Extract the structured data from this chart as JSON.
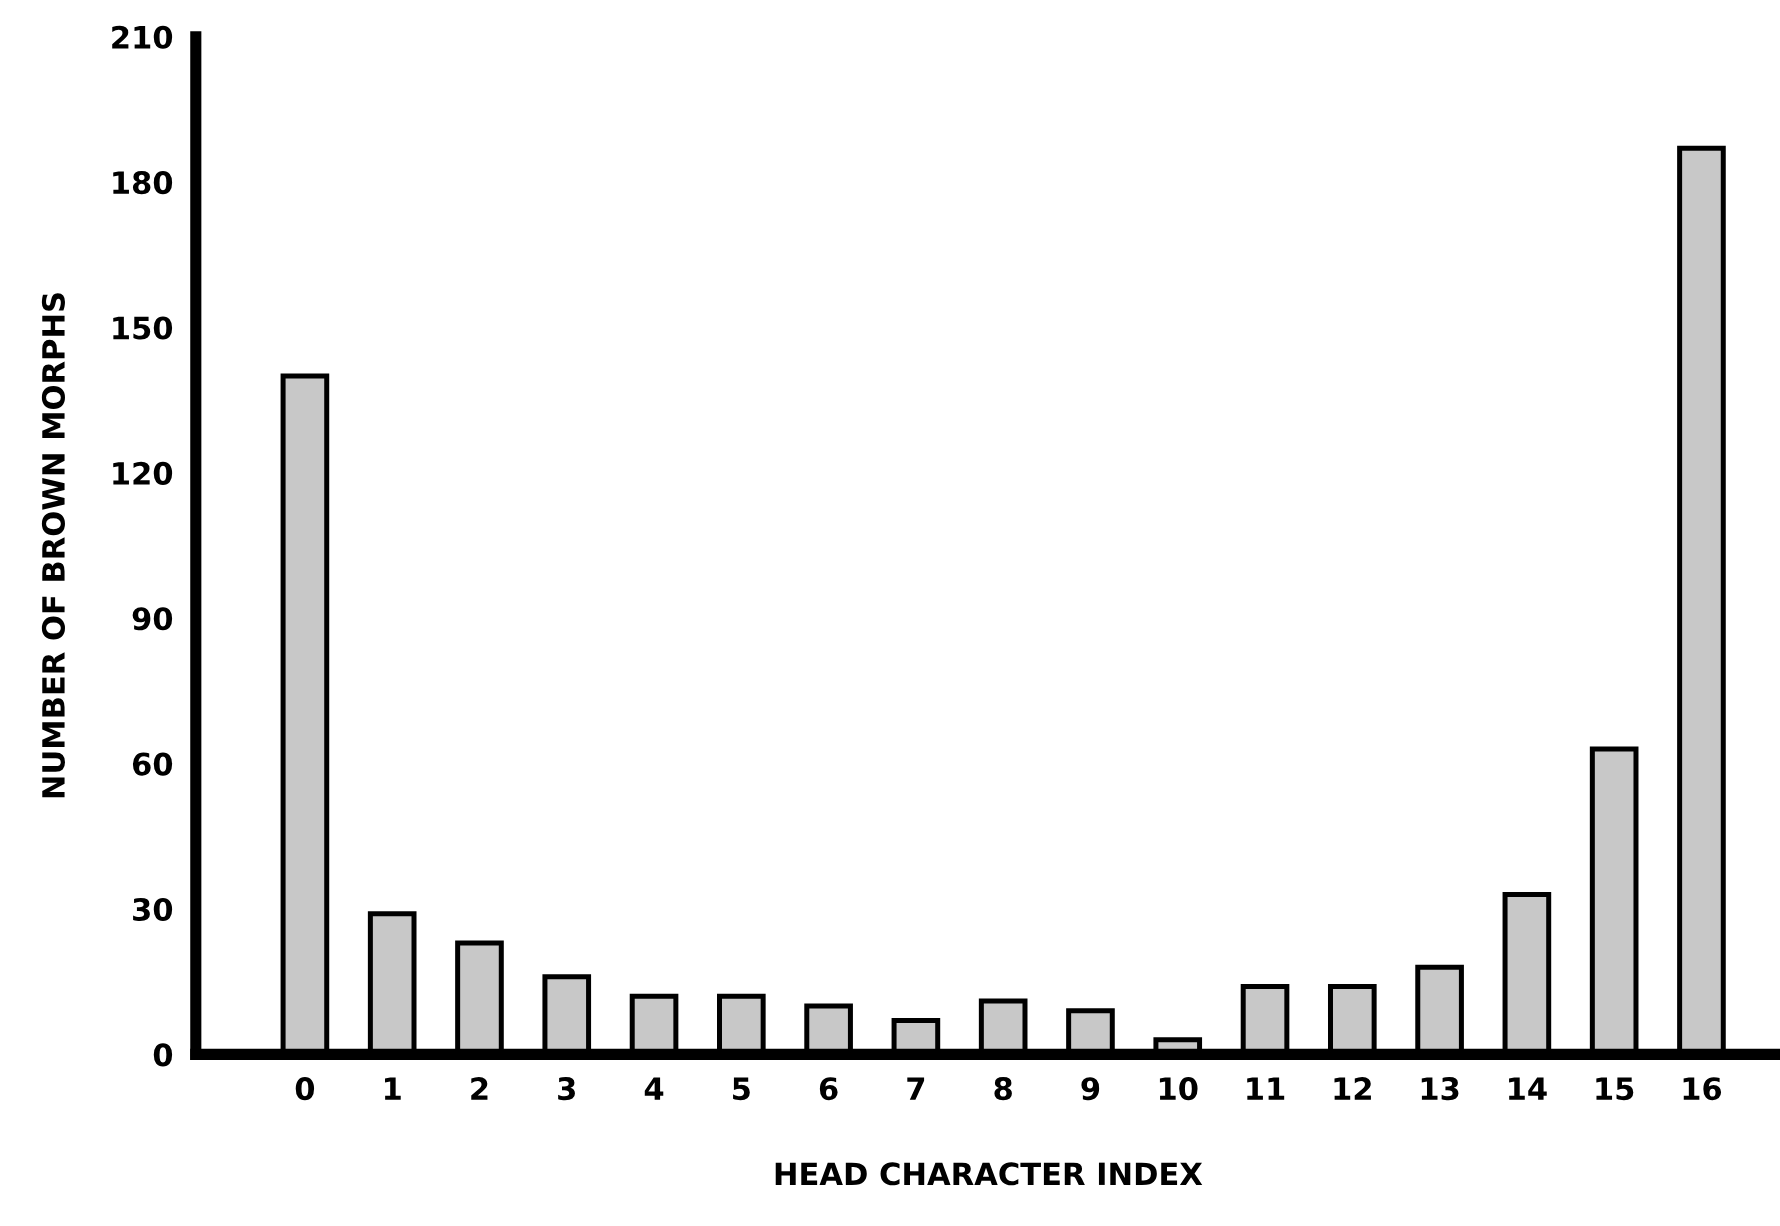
{
  "chart_data": {
    "type": "bar",
    "xlabel": "HEAD CHARACTER INDEX",
    "ylabel": "NUMBER OF BROWN MORPHS",
    "categories": [
      "0",
      "1",
      "2",
      "3",
      "4",
      "5",
      "6",
      "7",
      "8",
      "9",
      "10",
      "11",
      "12",
      "13",
      "14",
      "15",
      "16"
    ],
    "values": [
      140,
      29,
      23,
      16,
      12,
      12,
      10,
      7,
      11,
      9,
      3,
      14,
      14,
      18,
      33,
      63,
      187
    ],
    "color": "#c8c8c8",
    "ylim": [
      0,
      210
    ],
    "yticks": [
      0,
      30,
      60,
      90,
      120,
      150,
      180,
      210
    ],
    "grid": false,
    "legend": false
  }
}
